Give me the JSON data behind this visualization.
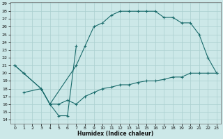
{
  "xlabel": "Humidex (Indice chaleur)",
  "bg_color": "#cce8e8",
  "line_color": "#1a6b6b",
  "grid_color": "#aacfcf",
  "xlim": [
    -0.5,
    23.5
  ],
  "ylim": [
    13.5,
    29.2
  ],
  "xticks": [
    0,
    1,
    2,
    3,
    4,
    5,
    6,
    7,
    8,
    9,
    10,
    11,
    12,
    13,
    14,
    15,
    16,
    17,
    18,
    19,
    20,
    21,
    22,
    23
  ],
  "yticks": [
    14,
    15,
    16,
    17,
    18,
    19,
    20,
    21,
    22,
    23,
    24,
    25,
    26,
    27,
    28,
    29
  ],
  "series": [
    {
      "x": [
        0,
        1,
        3,
        4,
        5,
        6,
        7
      ],
      "y": [
        21,
        20,
        18,
        16,
        14.5,
        14.5,
        23.5
      ]
    },
    {
      "x": [
        0,
        1,
        3,
        4,
        7,
        8,
        9,
        10,
        11,
        12,
        13,
        14,
        15,
        16,
        17,
        18,
        19,
        20,
        21,
        22,
        23
      ],
      "y": [
        21,
        20,
        18,
        16,
        21,
        23.5,
        26,
        26.5,
        27.5,
        28,
        28,
        28,
        28,
        28,
        27.2,
        27.2,
        26.5,
        26.5,
        25,
        22,
        20
      ]
    },
    {
      "x": [
        1,
        3,
        4,
        5,
        6,
        7,
        8,
        9,
        10,
        11,
        12,
        13,
        14,
        15,
        16,
        17,
        18,
        19,
        20,
        21,
        22,
        23
      ],
      "y": [
        17.5,
        18,
        16,
        16,
        16.5,
        16,
        17,
        17.5,
        18,
        18.2,
        18.5,
        18.5,
        18.8,
        19,
        19,
        19.2,
        19.5,
        19.5,
        20,
        20,
        20,
        20
      ]
    }
  ]
}
